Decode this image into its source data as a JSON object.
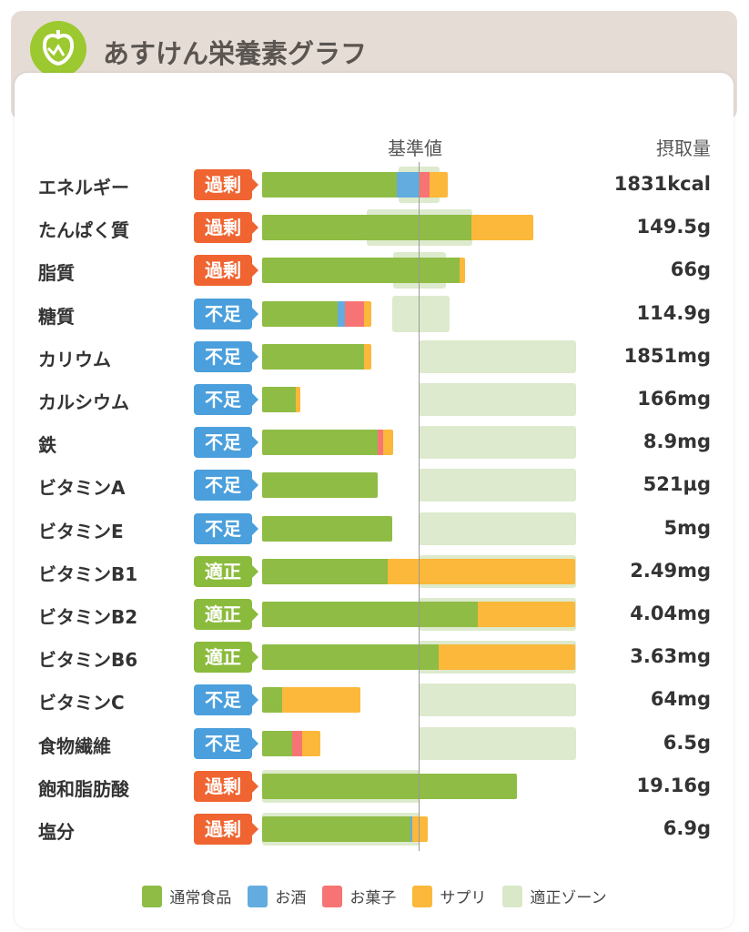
{
  "header": {
    "title": "あすけん栄養素グラフ",
    "logo_icon": "apple-icon"
  },
  "chart_data": {
    "type": "bar",
    "stacked": true,
    "orientation": "horizontal",
    "unit": "percent of reference value",
    "xlim": [
      0,
      200
    ],
    "reference_label": "基準値",
    "reference_value": 100,
    "intake_header": "摂取量",
    "series": [
      {
        "name": "通常食品",
        "color": "#8fbc45"
      },
      {
        "name": "お酒",
        "color": "#62acdf"
      },
      {
        "name": "お菓子",
        "color": "#f77475"
      },
      {
        "name": "サプリ",
        "color": "#fbb83a"
      }
    ],
    "zone_legend": {
      "name": "適正ゾーン",
      "color": "#d9e8c8"
    },
    "status_colors": {
      "過剰": "#ef6430",
      "不足": "#4a9fdc",
      "適正": "#8bbb3c"
    },
    "rows": [
      {
        "label": "エネルギー",
        "status": "過剰",
        "intake": "1831kcal",
        "values": [
          86,
          14.5,
          6.4,
          11.6
        ],
        "zone": [
          87,
          113
        ]
      },
      {
        "label": "たんぱく質",
        "status": "過剰",
        "intake": "149.5g",
        "values": [
          134,
          0,
          0,
          39
        ],
        "zone": [
          67,
          134
        ]
      },
      {
        "label": "脂質",
        "status": "過剰",
        "intake": "66g",
        "values": [
          126,
          0,
          0,
          3.5
        ],
        "zone": [
          84,
          117
        ]
      },
      {
        "label": "糖質",
        "status": "不足",
        "intake": "114.9g",
        "values": [
          48,
          5,
          12,
          5
        ],
        "zone": [
          83,
          119
        ]
      },
      {
        "label": "カリウム",
        "status": "不足",
        "intake": "1851mg",
        "values": [
          65,
          0,
          0,
          5
        ],
        "zone": [
          100,
          200
        ]
      },
      {
        "label": "カルシウム",
        "status": "不足",
        "intake": "166mg",
        "values": [
          21.5,
          0,
          0,
          3
        ],
        "zone": [
          100,
          200
        ]
      },
      {
        "label": "鉄",
        "status": "不足",
        "intake": "8.9mg",
        "values": [
          74,
          0,
          3.5,
          6.4
        ],
        "zone": [
          100,
          200
        ]
      },
      {
        "label": "ビタミンA",
        "status": "不足",
        "intake": "521µg",
        "values": [
          74,
          0,
          0,
          0
        ],
        "zone": [
          100,
          200
        ]
      },
      {
        "label": "ビタミンE",
        "status": "不足",
        "intake": "5mg",
        "values": [
          83,
          0,
          0,
          0
        ],
        "zone": [
          100,
          200
        ]
      },
      {
        "label": "ビタミンB1",
        "status": "適正",
        "intake": "2.49mg",
        "values": [
          80,
          0,
          0,
          120
        ],
        "zone": [
          100,
          200
        ]
      },
      {
        "label": "ビタミンB2",
        "status": "適正",
        "intake": "4.04mg",
        "values": [
          138,
          0,
          0,
          62
        ],
        "zone": [
          100,
          200
        ]
      },
      {
        "label": "ビタミンB6",
        "status": "適正",
        "intake": "3.63mg",
        "values": [
          113,
          0,
          0,
          87
        ],
        "zone": [
          100,
          200
        ]
      },
      {
        "label": "ビタミンC",
        "status": "不足",
        "intake": "64mg",
        "values": [
          13,
          0,
          0,
          50
        ],
        "zone": [
          100,
          200
        ]
      },
      {
        "label": "食物繊維",
        "status": "不足",
        "intake": "6.5g",
        "values": [
          19,
          0,
          6.4,
          12
        ],
        "zone": [
          100,
          200
        ]
      },
      {
        "label": "飽和脂肪酸",
        "status": "過剰",
        "intake": "19.16g",
        "values": [
          163,
          0,
          0,
          0
        ],
        "zone": [
          0,
          100
        ]
      },
      {
        "label": "塩分",
        "status": "過剰",
        "intake": "6.9g",
        "values": [
          95,
          1,
          0,
          10
        ],
        "zone": [
          0,
          100
        ]
      }
    ]
  }
}
